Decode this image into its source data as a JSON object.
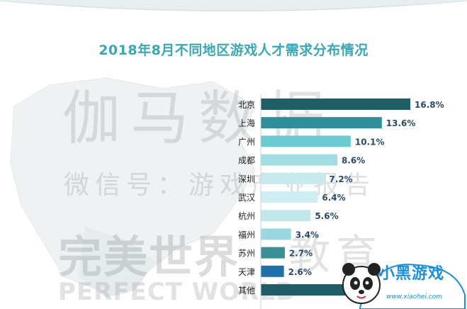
{
  "chart_data": {
    "type": "bar",
    "orientation": "horizontal",
    "title": "2018年8月不同地区游戏人才需求分布情况",
    "categories": [
      "北京",
      "上海",
      "广州",
      "成都",
      "深圳",
      "武汉",
      "杭州",
      "福州",
      "苏州",
      "天津",
      "其他"
    ],
    "values": [
      16.8,
      13.6,
      10.1,
      8.6,
      7.2,
      6.4,
      5.6,
      3.4,
      2.7,
      2.6,
      null
    ],
    "value_labels": [
      "16.8%",
      "13.6%",
      "10.1%",
      "8.6%",
      "7.2%",
      "6.4%",
      "5.6%",
      "3.4%",
      "2.7%",
      "2.6%",
      ""
    ],
    "colors": [
      "#1f5e66",
      "#2f8e98",
      "#6ccad3",
      "#a2dde3",
      "#c6eaee",
      "#cfeef2",
      "#bfe7ec",
      "#9ad8df",
      "#3d8f97",
      "#1f6fa8",
      "#1f5e66"
    ],
    "xlabel": "",
    "ylabel": "",
    "grid": false,
    "legend": "none"
  },
  "watermark": {
    "line1": "伽马数据",
    "line2": "微信号：游戏产业报告",
    "line3": "完美世界",
    "line3b": "教育",
    "line4": "PERFECT WORLD"
  },
  "logo": {
    "text": "小黑游戏",
    "url": "www.xiaohei.com"
  }
}
